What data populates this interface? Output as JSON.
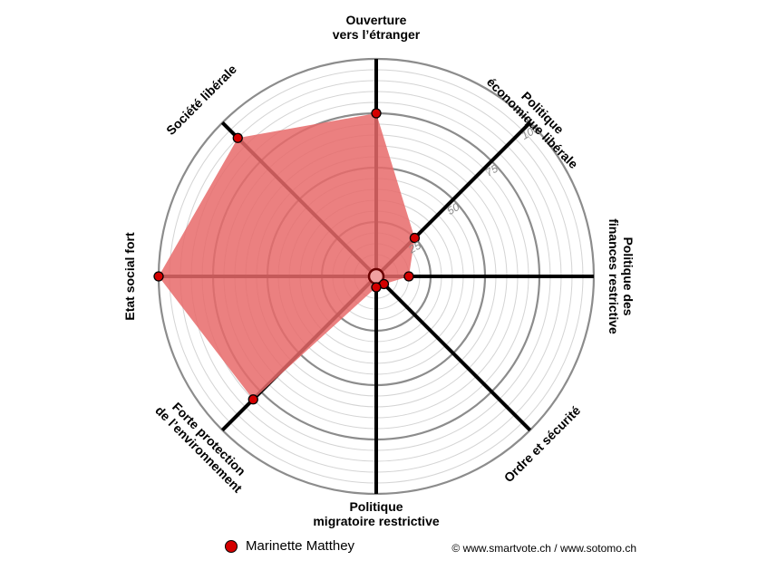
{
  "chart_data": {
    "type": "radar",
    "axes": [
      {
        "key": "ouverture",
        "label": [
          "Ouverture",
          "vers l’étranger"
        ],
        "value": 75
      },
      {
        "key": "eco_liberale",
        "label": [
          "Politique",
          "économique libérale"
        ],
        "value": 25
      },
      {
        "key": "finances",
        "label": [
          "Politique des",
          "finances restrictive"
        ],
        "value": 15
      },
      {
        "key": "ordre",
        "label": [
          "Ordre et sécurité"
        ],
        "value": 5
      },
      {
        "key": "migratoire",
        "label": [
          "Politique",
          "migratoire restrictive"
        ],
        "value": 5
      },
      {
        "key": "environnement",
        "label": [
          "Forte protection",
          "de l’environnement"
        ],
        "value": 80
      },
      {
        "key": "etat_social",
        "label": [
          "Etat social fort"
        ],
        "value": 100
      },
      {
        "key": "societe",
        "label": [
          "Société libérale"
        ],
        "value": 90
      }
    ],
    "rlim": [
      0,
      100
    ],
    "ticks": [
      "25",
      "50",
      "75",
      "100"
    ],
    "series": [
      {
        "name": "Marinette Matthey",
        "color": "#e86a6a",
        "point_color": "#d40000"
      }
    ],
    "legend_position": "bottom",
    "grid": true
  },
  "legend": {
    "name": "Marinette Matthey"
  },
  "copyright": "© www.smartvote.ch / www.sotomo.ch"
}
